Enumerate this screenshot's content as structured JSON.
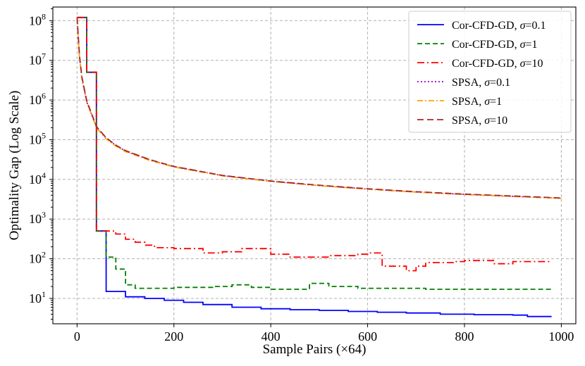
{
  "chart_data": {
    "type": "line",
    "xlabel": "Sample Pairs (×64)",
    "ylabel": "Optimality Gap (Log Scale)",
    "xlim": [
      -50,
      1030
    ],
    "ylim": [
      2.3,
      220000000
    ],
    "yscale": "log",
    "grid": true,
    "legend_position": "top-right",
    "x_ticks": [
      0,
      200,
      400,
      600,
      800,
      1000
    ],
    "x_tick_labels": [
      "0",
      "200",
      "400",
      "600",
      "800",
      "1000"
    ],
    "y_ticks": [
      10,
      100,
      1000,
      10000,
      100000,
      1000000,
      10000000,
      100000000
    ],
    "y_tick_labels": [
      {
        "base": "10",
        "exp": "1"
      },
      {
        "base": "10",
        "exp": "2"
      },
      {
        "base": "10",
        "exp": "3"
      },
      {
        "base": "10",
        "exp": "4"
      },
      {
        "base": "10",
        "exp": "5"
      },
      {
        "base": "10",
        "exp": "6"
      },
      {
        "base": "10",
        "exp": "7"
      },
      {
        "base": "10",
        "exp": "8"
      }
    ],
    "series": [
      {
        "name": "Cor-CFD-GD, σ=0.1",
        "label_main": "Cor-CFD-GD, ",
        "label_greek": "σ",
        "label_val": "=0.1",
        "color": "#0000ff",
        "dash": "",
        "step": true,
        "x": [
          0,
          20,
          40,
          60,
          100,
          140,
          180,
          220,
          260,
          320,
          380,
          440,
          500,
          560,
          620,
          680,
          750,
          820,
          900,
          930,
          980
        ],
        "y": [
          120000000,
          5000000,
          500,
          15,
          11,
          10,
          9,
          8,
          7,
          6,
          5.5,
          5.2,
          5,
          4.7,
          4.5,
          4.3,
          4,
          3.9,
          3.8,
          3.5,
          3.5
        ]
      },
      {
        "name": "Cor-CFD-GD, σ=1",
        "label_main": "Cor-CFD-GD, ",
        "label_greek": "σ",
        "label_val": "=1",
        "color": "#008000",
        "dash": "7,4",
        "step": true,
        "x": [
          0,
          20,
          40,
          60,
          80,
          100,
          120,
          140,
          200,
          280,
          320,
          360,
          400,
          480,
          520,
          580,
          720,
          800,
          900,
          980
        ],
        "y": [
          120000000,
          5000000,
          500,
          110,
          55,
          22,
          18,
          18,
          19,
          20,
          22,
          19,
          17,
          24,
          20,
          18,
          17,
          17,
          17,
          17
        ]
      },
      {
        "name": "Cor-CFD-GD, σ=10",
        "label_main": "Cor-CFD-GD, ",
        "label_greek": "σ",
        "label_val": "=10",
        "color": "#ff0000",
        "dash": "10,4,2,4",
        "step": true,
        "x": [
          0,
          20,
          40,
          60,
          80,
          100,
          120,
          140,
          160,
          200,
          260,
          300,
          340,
          400,
          440,
          480,
          520,
          580,
          600,
          630,
          680,
          700,
          720,
          780,
          800,
          860,
          900,
          980
        ],
        "y": [
          120000000,
          5000000,
          500,
          500,
          420,
          310,
          260,
          220,
          190,
          180,
          140,
          150,
          180,
          130,
          110,
          110,
          120,
          130,
          140,
          65,
          50,
          65,
          80,
          85,
          90,
          75,
          85,
          85
        ]
      },
      {
        "name": "SPSA, σ=0.1",
        "label_main": "SPSA, ",
        "label_greek": "σ",
        "label_val": "=0.1",
        "color": "#9400d3",
        "dash": "2,3",
        "step": false,
        "x": [
          0,
          5,
          10,
          20,
          40,
          60,
          80,
          100,
          150,
          200,
          300,
          400,
          500,
          600,
          700,
          800,
          900,
          1000
        ],
        "y": [
          110000000,
          12000000,
          3500000,
          900000,
          210000,
          110000,
          72000,
          52000,
          31000,
          21000,
          12500,
          9000,
          7000,
          5700,
          4800,
          4200,
          3750,
          3350
        ]
      },
      {
        "name": "SPSA, σ=1",
        "label_main": "SPSA, ",
        "label_greek": "σ",
        "label_val": "=1",
        "color": "#ffa500",
        "dash": "8,3,2,3",
        "step": false,
        "x": [
          0,
          5,
          10,
          20,
          40,
          60,
          80,
          100,
          150,
          200,
          300,
          400,
          500,
          600,
          700,
          800,
          900,
          1000
        ],
        "y": [
          110000000,
          12000000,
          3500000,
          900000,
          200000,
          105000,
          69000,
          50000,
          30000,
          20500,
          12300,
          8900,
          6950,
          5650,
          4760,
          4150,
          3720,
          3320
        ]
      },
      {
        "name": "SPSA, σ=10",
        "label_main": "SPSA, ",
        "label_greek": "σ",
        "label_val": "=10",
        "color": "#a52a2a",
        "dash": "9,5",
        "step": false,
        "x": [
          0,
          5,
          10,
          20,
          40,
          60,
          80,
          100,
          150,
          200,
          300,
          400,
          500,
          600,
          700,
          800,
          900,
          1000
        ],
        "y": [
          120000000,
          13000000,
          3800000,
          950000,
          215000,
          112000,
          73000,
          53000,
          31500,
          21200,
          12600,
          9100,
          7100,
          5800,
          4880,
          4250,
          3800,
          3400
        ]
      }
    ]
  }
}
